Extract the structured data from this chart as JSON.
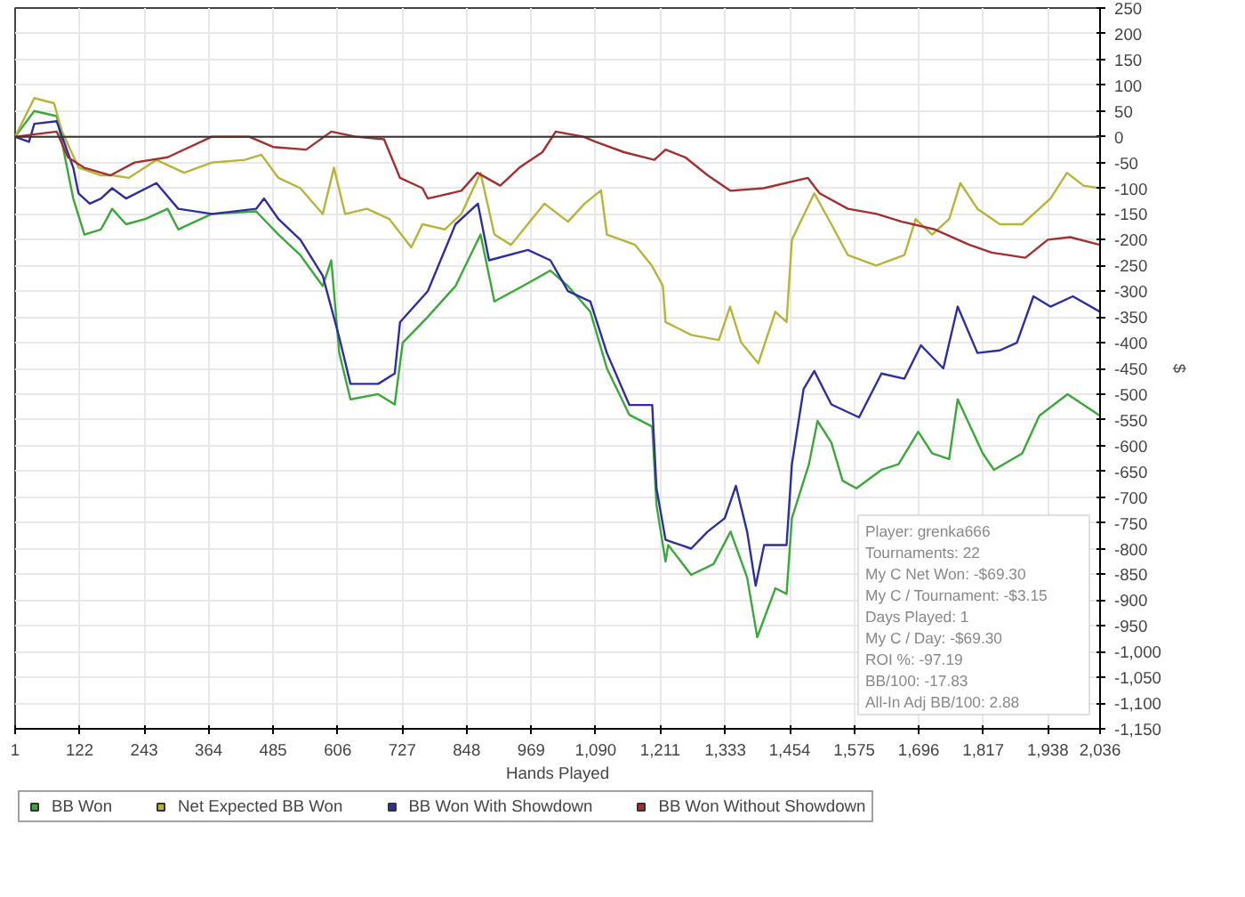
{
  "chart_data": {
    "type": "line",
    "xlabel": "Hands Played",
    "ylabel": "$",
    "xlim": [
      1,
      2036
    ],
    "ylim": [
      -1150,
      250
    ],
    "xticks": [
      1,
      122,
      243,
      364,
      485,
      606,
      727,
      848,
      969,
      {
        "value": 1090,
        "label": "1,090"
      },
      {
        "value": 1211,
        "label": "1,211"
      },
      {
        "value": 1333,
        "label": "1,333"
      },
      {
        "value": 1454,
        "label": "1,454"
      },
      {
        "value": 1575,
        "label": "1,575"
      },
      {
        "value": 1696,
        "label": "1,696"
      },
      {
        "value": 1817,
        "label": "1,817"
      },
      {
        "value": 1938,
        "label": "1,938"
      },
      {
        "value": 2036,
        "label": "2,036"
      }
    ],
    "yticks": [
      250,
      200,
      150,
      100,
      50,
      0,
      -50,
      -100,
      -150,
      -200,
      -250,
      -300,
      -350,
      -400,
      -450,
      -500,
      -550,
      -600,
      -650,
      -700,
      -750,
      -800,
      -850,
      -900,
      -950,
      {
        "value": -1000,
        "label": "-1,000"
      },
      {
        "value": -1050,
        "label": "-1,050"
      },
      {
        "value": -1100,
        "label": "-1,100"
      },
      {
        "value": -1150,
        "label": "-1,150"
      }
    ],
    "grid": true,
    "legend": "bottom",
    "marker": "none",
    "line_style": "solid",
    "ref_lines": [
      {
        "axis": "y",
        "value": 0,
        "color": "#333333"
      }
    ],
    "annotations": [
      "Player: grenka666",
      "Tournaments: 22",
      "My C Net Won: -$69.30",
      "My C / Tournament: -$3.15",
      "Days Played: 1",
      "My C / Day: -$69.30",
      "ROI %: -97.19",
      "BB/100: -17.83",
      "All-In Adj BB/100: 2.88"
    ],
    "series": [
      {
        "name": "BB Won",
        "color": "#3aa83a",
        "x": [
          1,
          37,
          79,
          110,
          131,
          162,
          183,
          209,
          245,
          287,
          307,
          370,
          453,
          495,
          536,
          578,
          594,
          609,
          630,
          682,
          713,
          728,
          775,
          827,
          874,
          900,
          953,
          1005,
          1038,
          1080,
          1111,
          1153,
          1196,
          1204,
          1221,
          1226,
          1269,
          1311,
          1343,
          1374,
          1393,
          1427,
          1448,
          1458,
          1490,
          1506,
          1532,
          1553,
          1579,
          1626,
          1658,
          1695,
          1721,
          1753,
          1769,
          1816,
          1837,
          1890,
          1922,
          1975,
          2036
        ],
        "values": [
          0,
          50,
          40,
          -120,
          -190,
          -180,
          -140,
          -170,
          -160,
          -140,
          -180,
          -150,
          -145,
          -190,
          -230,
          -290,
          -240,
          -420,
          -510,
          -500,
          -520,
          -400,
          -350,
          -290,
          -190,
          -320,
          -290,
          -260,
          -290,
          -340,
          -450,
          -540,
          -563,
          -715,
          -825,
          -793,
          -851,
          -830,
          -767,
          -856,
          -972,
          -877,
          -888,
          -741,
          -636,
          -552,
          -594,
          -668,
          -683,
          -647,
          -636,
          -573,
          -615,
          -626,
          -510,
          -615,
          -647,
          -615,
          -542,
          -500,
          -542
        ]
      },
      {
        "name": "Net Expected BB Won",
        "color": "#b5b53a",
        "x": [
          1,
          37,
          74,
          89,
          120,
          162,
          183,
          214,
          266,
          318,
          370,
          432,
          463,
          495,
          536,
          578,
          599,
          620,
          661,
          703,
          744,
          765,
          807,
          838,
          874,
          900,
          931,
          994,
          1038,
          1069,
          1100,
          1111,
          1164,
          1195,
          1216,
          1221,
          1269,
          1321,
          1342,
          1363,
          1395,
          1427,
          1448,
          1458,
          1500,
          1532,
          1563,
          1616,
          1669,
          1690,
          1721,
          1753,
          1774,
          1806,
          1848,
          1890,
          1943,
          1974,
          2005,
          2036
        ],
        "values": [
          0,
          75,
          65,
          10,
          -60,
          -75,
          -75,
          -80,
          -45,
          -70,
          -50,
          -45,
          -35,
          -80,
          -100,
          -150,
          -60,
          -150,
          -140,
          -160,
          -215,
          -170,
          -180,
          -150,
          -70,
          -190,
          -210,
          -130,
          -165,
          -130,
          -104,
          -190,
          -210,
          -250,
          -290,
          -360,
          -385,
          -395,
          -330,
          -400,
          -440,
          -340,
          -360,
          -200,
          -110,
          -170,
          -230,
          -250,
          -230,
          -160,
          -190,
          -160,
          -90,
          -140,
          -170,
          -170,
          -120,
          -70,
          -95,
          -100
        ]
      },
      {
        "name": "BB Won With Showdown",
        "color": "#2e2ea0",
        "x": [
          1,
          27,
          37,
          79,
          110,
          120,
          141,
          162,
          183,
          209,
          266,
          307,
          370,
          453,
          468,
          495,
          536,
          578,
          609,
          630,
          682,
          713,
          723,
          775,
          827,
          869,
          890,
          963,
          1005,
          1038,
          1080,
          1111,
          1153,
          1196,
          1204,
          1221,
          1269,
          1300,
          1332,
          1353,
          1374,
          1390,
          1406,
          1448,
          1458,
          1480,
          1500,
          1532,
          1584,
          1626,
          1669,
          1700,
          1742,
          1769,
          1806,
          1848,
          1880,
          1911,
          1943,
          1985,
          2036
        ],
        "values": [
          0,
          -10,
          25,
          30,
          -60,
          -110,
          -130,
          -120,
          -100,
          -120,
          -90,
          -140,
          -150,
          -140,
          -120,
          -160,
          -200,
          -270,
          -390,
          -480,
          -480,
          -460,
          -360,
          -300,
          -170,
          -130,
          -240,
          -220,
          -240,
          -300,
          -320,
          -420,
          -521,
          -521,
          -683,
          -783,
          -800,
          -767,
          -741,
          -678,
          -767,
          -872,
          -793,
          -793,
          -636,
          -490,
          -455,
          -520,
          -545,
          -460,
          -470,
          -405,
          -450,
          -330,
          -420,
          -415,
          -400,
          -310,
          -330,
          -310,
          -340
        ]
      },
      {
        "name": "BB Won Without Showdown",
        "color": "#a33030",
        "x": [
          1,
          79,
          100,
          130,
          180,
          225,
          287,
          370,
          440,
          485,
          547,
          594,
          640,
          693,
          723,
          765,
          775,
          838,
          868,
          911,
          947,
          990,
          1015,
          1067,
          1090,
          1143,
          1200,
          1221,
          1258,
          1300,
          1343,
          1405,
          1488,
          1510,
          1563,
          1617,
          1664,
          1726,
          1791,
          1833,
          1896,
          1938,
          1980,
          2036
        ],
        "values": [
          0,
          10,
          -40,
          -60,
          -75,
          -50,
          -40,
          0,
          0,
          -20,
          -25,
          10,
          0,
          -5,
          -80,
          -100,
          -120,
          -105,
          -70,
          -95,
          -60,
          -30,
          10,
          0,
          -10,
          -30,
          -45,
          -25,
          -40,
          -75,
          -105,
          -100,
          -80,
          -110,
          -140,
          -150,
          -165,
          -180,
          -210,
          -225,
          -235,
          -200,
          -195,
          -210
        ]
      }
    ]
  }
}
